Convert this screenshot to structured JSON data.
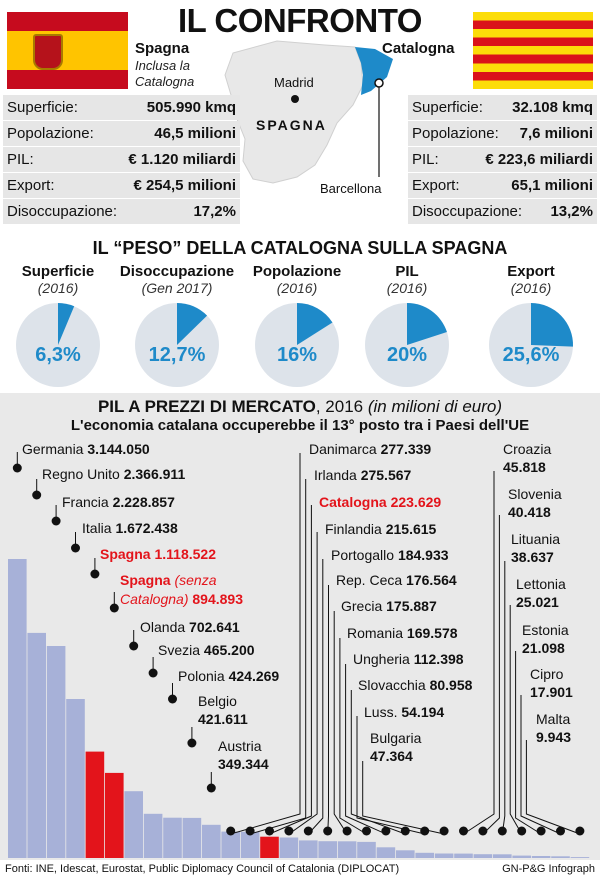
{
  "title": "IL CONFRONTO",
  "spain": {
    "name": "Spagna",
    "note_line1": "Inclusa la",
    "note_line2": "Catalogna",
    "stats": [
      {
        "label": "Superficie:",
        "value": "505.990 kmq"
      },
      {
        "label": "Popolazione:",
        "value": "46,5 milioni"
      },
      {
        "label": "PIL:",
        "value": "€ 1.120 miliardi"
      },
      {
        "label": "Export:",
        "value": "€ 254,5 milioni"
      },
      {
        "label": "Disoccupazione:",
        "value": "17,2%"
      }
    ]
  },
  "catalonia": {
    "name": "Catalogna",
    "stats": [
      {
        "label": "Superficie:",
        "value": "32.108 kmq"
      },
      {
        "label": "Popolazione:",
        "value": "7,6 milioni"
      },
      {
        "label": "PIL:",
        "value": "€ 223,6 miliardi"
      },
      {
        "label": "Export:",
        "value": "65,1 milioni"
      },
      {
        "label": "Disoccupazione:",
        "value": "13,2%"
      }
    ]
  },
  "map": {
    "madrid": "Madrid",
    "spagna": "SPAGNA",
    "barcellona": "Barcellona",
    "spain_color": "#e8e8e8",
    "catalonia_color": "#1e8ac9"
  },
  "peso": {
    "title": "IL “PESO” DELLA CATALOGNA SULLA SPAGNA",
    "items": [
      {
        "name": "Superficie",
        "period": "(2016)",
        "value": 6.3,
        "label": "6,3%"
      },
      {
        "name": "Disoccupazione",
        "period": "(Gen 2017)",
        "value": 12.7,
        "label": "12,7%"
      },
      {
        "name": "Popolazione",
        "period": "(2016)",
        "value": 16,
        "label": "16%"
      },
      {
        "name": "PIL",
        "period": "(2016)",
        "value": 20,
        "label": "20%"
      },
      {
        "name": "Export",
        "period": "(2016)",
        "value": 25.6,
        "label": "25,6%"
      }
    ]
  },
  "pil": {
    "title_bold": "PIL A PREZZI DI MERCATO",
    "title_year": ", 2016",
    "title_unit": "(in milioni di euro)",
    "subtitle": "L'economia catalana occuperebbe il 13° posto tra i Paesi dell'UE"
  },
  "chart_data": [
    {
      "type": "pie",
      "title": "IL “PESO” DELLA CATALOGNA SULLA SPAGNA",
      "categories": [
        "Superficie",
        "Disoccupazione",
        "Popolazione",
        "PIL",
        "Export"
      ],
      "values": [
        6.3,
        12.7,
        16,
        20,
        25.6
      ]
    },
    {
      "type": "bar",
      "title": "PIL A PREZZI DI MERCATO, 2016 (in milioni di euro)",
      "subtitle": "L'economia catalana occuperebbe il 13° posto tra i Paesi dell'UE",
      "categories": [
        "Germania",
        "Regno Unito",
        "Francia",
        "Italia",
        "Spagna",
        "Spagna (senza Catalogna)",
        "Olanda",
        "Svezia",
        "Polonia",
        "Belgio",
        "Austria",
        "Danimarca",
        "Irlanda",
        "Catalogna",
        "Finlandia",
        "Portogallo",
        "Rep. Ceca",
        "Grecia",
        "Romania",
        "Ungheria",
        "Slovacchia",
        "Lussemburgo",
        "Bulgaria",
        "Croazia",
        "Slovenia",
        "Lituania",
        "Lettonia",
        "Estonia",
        "Cipro",
        "Malta"
      ],
      "values": [
        3144050,
        2366911,
        2228857,
        1672438,
        1118522,
        894893,
        702641,
        465200,
        424269,
        421611,
        349344,
        277339,
        275567,
        223629,
        215615,
        184933,
        176564,
        175887,
        169578,
        112398,
        80958,
        54194,
        47364,
        45818,
        40418,
        38637,
        25021,
        21098,
        17901,
        9943
      ],
      "highlight": [
        "Spagna",
        "Spagna (senza Catalogna)",
        "Catalogna"
      ],
      "bar_color": "#a7b1d8",
      "highlight_color": "#e3141b"
    }
  ],
  "bar_labels": [
    {
      "name": "Germania",
      "value": "3.144.050"
    },
    {
      "name": "Regno Unito",
      "value": "2.366.911"
    },
    {
      "name": "Francia",
      "value": "2.228.857"
    },
    {
      "name": "Italia",
      "value": "1.672.438"
    },
    {
      "name": "Spagna",
      "value": "1.118.522"
    },
    {
      "name1": "Spagna",
      "name2": "(senza",
      "name3": "Catalogna)",
      "value": "894.893"
    },
    {
      "name": "Olanda",
      "value": "702.641"
    },
    {
      "name": "Svezia",
      "value": "465.200"
    },
    {
      "name": "Polonia",
      "value": "424.269"
    },
    {
      "name": "Belgio",
      "value": "421.611"
    },
    {
      "name": "Austria",
      "value": "349.344"
    },
    {
      "name": "Danimarca",
      "value": "277.339"
    },
    {
      "name": "Irlanda",
      "value": "275.567"
    },
    {
      "name": "Catalogna",
      "value": "223.629"
    },
    {
      "name": "Finlandia",
      "value": "215.615"
    },
    {
      "name": "Portogallo",
      "value": "184.933"
    },
    {
      "name": "Rep. Ceca",
      "value": "176.564"
    },
    {
      "name": "Grecia",
      "value": "175.887"
    },
    {
      "name": "Romania",
      "value": "169.578"
    },
    {
      "name": "Ungheria",
      "value": "112.398"
    },
    {
      "name": "Slovacchia",
      "value": "80.958"
    },
    {
      "name": "Luss.",
      "value": "54.194"
    },
    {
      "name": "Bulgaria",
      "value": "47.364"
    },
    {
      "name": "Croazia",
      "value": "45.818"
    },
    {
      "name": "Slovenia",
      "value": "40.418"
    },
    {
      "name": "Lituania",
      "value": "38.637"
    },
    {
      "name": "Lettonia",
      "value": "25.021"
    },
    {
      "name": "Estonia",
      "value": "21.098"
    },
    {
      "name": "Cipro",
      "value": "17.901"
    },
    {
      "name": "Malta",
      "value": "9.943"
    }
  ],
  "footer": {
    "source": "Fonti: INE, Idescat, Eurostat, Public Diplomacy Council of Catalonia (DIPLOCAT)",
    "credit": "GN-P&G Infograph"
  }
}
